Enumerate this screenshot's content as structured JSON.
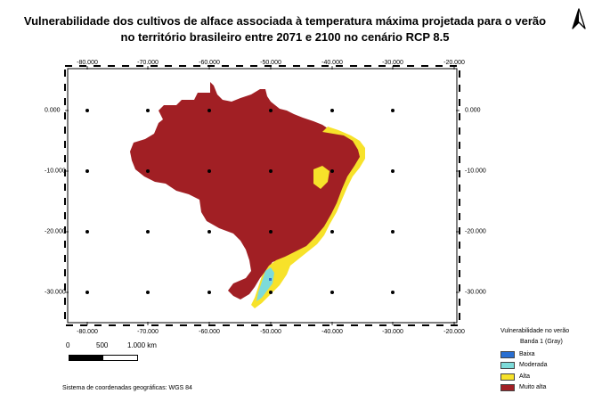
{
  "title": "Vulnerabilidade dos cultivos de alface associada à temperatura máxima projetada para o verão no território brasileiro entre 2071 e 2100 no cenário RCP 8.5",
  "north_arrow": {
    "icon": "north-arrow-icon"
  },
  "map": {
    "x_ticks": [
      "-80.000",
      "-70.000",
      "-60.000",
      "-50.000",
      "-40.000",
      "-30.000",
      "-20.000"
    ],
    "y_ticks": [
      "0.000",
      "-10.000",
      "-20.000",
      "-30.000"
    ]
  },
  "scale_bar": {
    "labels": [
      "0",
      "500",
      "1.000 km"
    ]
  },
  "crs_note": "Sistema de coordenadas geográficas: WGS 84",
  "legend": {
    "title": "Vulnerabilidade no verão",
    "band": "Banda 1 (Gray)",
    "items": [
      {
        "label": "Baixa",
        "color": "#2a6fd1"
      },
      {
        "label": "Moderada",
        "color": "#7ddbd9"
      },
      {
        "label": "Alta",
        "color": "#f7e22a"
      },
      {
        "label": "Muito alta",
        "color": "#a11f24"
      }
    ]
  }
}
